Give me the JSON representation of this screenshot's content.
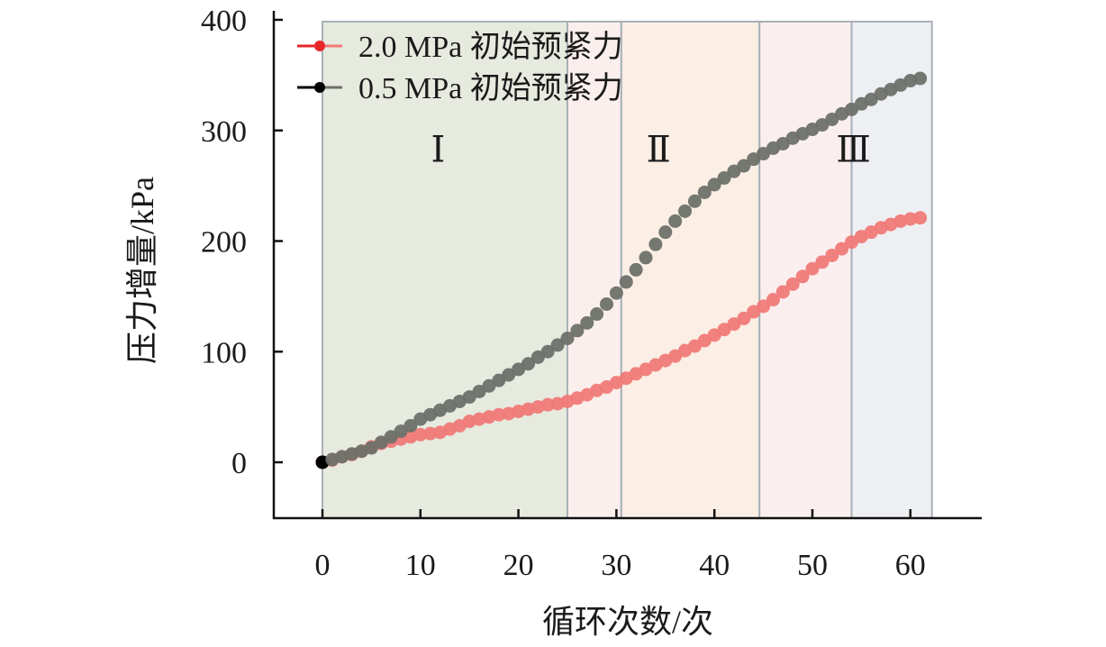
{
  "chart_data": {
    "type": "line",
    "xlabel": "循环次数/次",
    "ylabel": "压力增量/kPa",
    "xlim": [
      -5,
      67
    ],
    "ylim": [
      0,
      400
    ],
    "xticks": [
      0,
      10,
      20,
      30,
      40,
      50,
      60
    ],
    "yticks": [
      0,
      100,
      200,
      300,
      400
    ],
    "grid": false,
    "legend_position": "top-left",
    "regions": [
      {
        "label": "Ⅰ",
        "from": 0,
        "to": 25,
        "color": "#e6eadf",
        "label_x": 11.8
      },
      {
        "label": "",
        "from": 25,
        "to": 30.5,
        "color": "#fbefed"
      },
      {
        "label": "Ⅱ",
        "from": 30.5,
        "to": 44.6,
        "color": "#fbeee4",
        "label_x": 34.3
      },
      {
        "label": "",
        "from": 44.6,
        "to": 54,
        "color": "#fbeeee"
      },
      {
        "label": "Ⅲ",
        "from": 54,
        "to": 62.2,
        "color": "#eeeff3",
        "label_x": 54.2
      }
    ],
    "region_label_y": 283,
    "series": [
      {
        "name": "2.0 MPa 初始预紧力",
        "color": "#f07a78",
        "legend_marker_color": "#e8262a",
        "x_start": 0,
        "values": [
          0,
          2,
          5,
          7,
          10,
          14,
          17,
          19,
          21,
          23,
          25,
          26,
          27,
          30,
          33,
          37,
          39,
          41,
          43,
          44,
          46,
          48,
          50,
          52,
          53,
          55,
          58,
          61,
          65,
          68,
          72,
          76,
          80,
          84,
          88,
          92,
          96,
          101,
          105,
          110,
          115,
          120,
          125,
          130,
          136,
          141,
          147,
          154,
          161,
          168,
          175,
          181,
          187,
          193,
          199,
          204,
          208,
          212,
          215,
          218,
          220,
          221
        ]
      },
      {
        "name": "0.5 MPa 初始预紧力",
        "color": "#6e706a",
        "legend_marker_color": "#000000",
        "x_start": 0,
        "values": [
          0,
          2.5,
          5,
          7.5,
          10,
          13,
          18,
          23,
          28,
          33,
          39,
          43,
          47,
          51,
          55,
          59,
          64,
          69,
          74,
          79,
          84,
          89,
          95,
          100,
          106,
          112,
          119,
          126,
          134,
          143,
          153,
          163,
          174,
          185,
          197,
          208,
          218,
          227,
          236,
          244,
          251,
          257,
          263,
          268,
          274,
          279,
          284,
          288,
          293,
          297,
          301,
          305,
          310,
          315,
          319,
          324,
          328,
          333,
          337,
          341,
          345,
          347
        ]
      }
    ]
  }
}
